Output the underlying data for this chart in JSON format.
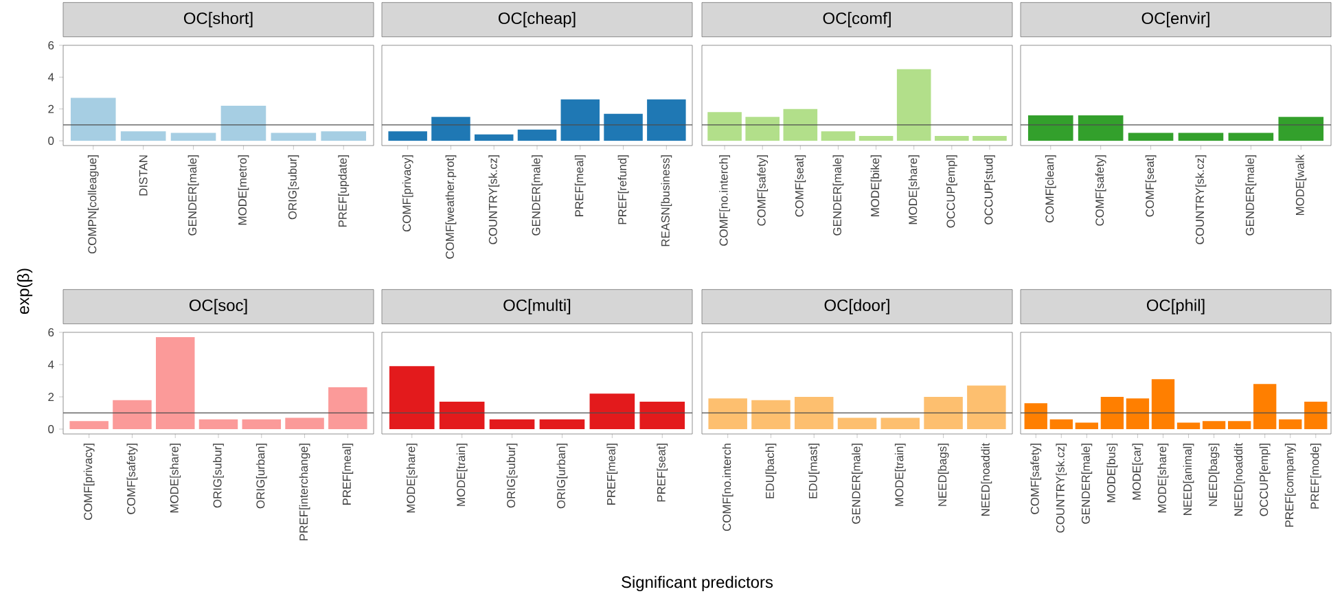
{
  "chart_data": [
    {
      "type": "bar",
      "title": "OC[short]",
      "categories": [
        "COMPN[colleague]",
        "DISTAN",
        "GENDER[male]",
        "MODE[metro]",
        "ORIG[subur]",
        "PREF[update]"
      ],
      "values": [
        2.7,
        0.6,
        0.5,
        2.2,
        0.5,
        0.6
      ],
      "color": "#a6cee3",
      "ylim": [
        -0.3,
        6.0
      ],
      "yticks": [
        0,
        2,
        4,
        6
      ],
      "ref_lines": [
        {
          "axis": "y",
          "value": 1,
          "color": "#4d4d4d"
        }
      ]
    },
    {
      "type": "bar",
      "title": "OC[cheap]",
      "categories": [
        "COMF[privacy]",
        "COMF[weather.prot]",
        "COUNTRY[sk.cz]",
        "GENDER[male]",
        "PREF[meal]",
        "PREF[refund]",
        "REASN[business]"
      ],
      "values": [
        0.6,
        1.5,
        0.4,
        0.7,
        2.6,
        1.7,
        2.6
      ],
      "color": "#1f78b4",
      "ylim": [
        -0.3,
        6.0
      ],
      "tick_labels": "x",
      "ref_lines": [
        {
          "axis": "y",
          "value": 1,
          "color": "#4d4d4d"
        }
      ]
    },
    {
      "type": "bar",
      "title": "OC[comf]",
      "categories": [
        "COMF[no.interch]",
        "COMF[safety]",
        "COMF[seat]",
        "GENDER[male]",
        "MODE[bike]",
        "MODE[share]",
        "OCCUP[empl]",
        "OCCUP[stud]"
      ],
      "values": [
        1.8,
        1.5,
        2.0,
        0.6,
        0.3,
        4.5,
        0.3,
        0.3
      ],
      "color": "#b2df8a",
      "ylim": [
        -0.3,
        6.0
      ],
      "tick_labels": "x",
      "ref_lines": [
        {
          "axis": "y",
          "value": 1,
          "color": "#4d4d4d"
        }
      ]
    },
    {
      "type": "bar",
      "title": "OC[envir]",
      "categories": [
        "COMF[clean]",
        "COMF[safety]",
        "COMF[seat]",
        "COUNTRY[sk.cz]",
        "GENDER[male]",
        "MODE[walk"
      ],
      "values": [
        1.6,
        1.6,
        0.5,
        0.5,
        0.5,
        1.5
      ],
      "color": "#33a02c",
      "ylim": [
        -0.3,
        6.0
      ],
      "tick_labels": "x",
      "ref_lines": [
        {
          "axis": "y",
          "value": 1,
          "color": "#4d4d4d"
        }
      ]
    },
    {
      "type": "bar",
      "title": "OC[soc]",
      "ylabel": "exp(β)",
      "categories": [
        "COMF[privacy]",
        "COMF[safety]",
        "MODE[share]",
        "ORIG[subur]",
        "ORIG[urban]",
        "PREF[interchange]",
        "PREF[meal]"
      ],
      "values": [
        0.5,
        1.8,
        5.7,
        0.6,
        0.6,
        0.7,
        2.6
      ],
      "color": "#fb9a99",
      "ylim": [
        -0.3,
        6.0
      ],
      "yticks": [
        0,
        2,
        4,
        6
      ],
      "ref_lines": [
        {
          "axis": "y",
          "value": 1,
          "color": "#4d4d4d"
        }
      ]
    },
    {
      "type": "bar",
      "title": "OC[multi]",
      "xlabel": "Significant predictors",
      "categories": [
        "MODE[share]",
        "MODE[train]",
        "ORIG[subur]",
        "ORIG[urban]",
        "PREF[meal]",
        "PREF[seat]"
      ],
      "values": [
        3.9,
        1.7,
        0.6,
        0.6,
        2.2,
        1.7
      ],
      "color": "#e31a1c",
      "ylim": [
        -0.3,
        6.0
      ],
      "tick_labels": "x",
      "ref_lines": [
        {
          "axis": "y",
          "value": 1,
          "color": "#4d4d4d"
        }
      ]
    },
    {
      "type": "bar",
      "title": "OC[door]",
      "categories": [
        "COMF[no.interch",
        "EDU[bach]",
        "EDU[mast]",
        "GENDER[male]",
        "MODE[train]",
        "NEED[bags]",
        "NEED[noaddit"
      ],
      "values": [
        1.9,
        1.8,
        2.0,
        0.7,
        0.7,
        2.0,
        2.7
      ],
      "color": "#fdbf6f",
      "ylim": [
        -0.3,
        6.0
      ],
      "tick_labels": "x",
      "ref_lines": [
        {
          "axis": "y",
          "value": 1,
          "color": "#4d4d4d"
        }
      ]
    },
    {
      "type": "bar",
      "title": "OC[phil]",
      "categories": [
        "COMF[safety]",
        "COUNTRY[sk.cz]",
        "GENDER[male]",
        "MODE[bus]",
        "MODE[car]",
        "MODE[share]",
        "NEED[animal]",
        "NEED[bags]",
        "NEED[noaddit",
        "OCCUP[empl]",
        "PREF[company]",
        "PREF[mode]"
      ],
      "values": [
        1.6,
        0.6,
        0.4,
        2.0,
        1.9,
        3.1,
        0.4,
        0.5,
        0.5,
        2.8,
        0.6,
        1.7
      ],
      "color": "#ff7f00",
      "ylim": [
        -0.3,
        6.0
      ],
      "tick_labels": "x",
      "ref_lines": [
        {
          "axis": "y",
          "value": 1,
          "color": "#4d4d4d"
        }
      ]
    }
  ]
}
